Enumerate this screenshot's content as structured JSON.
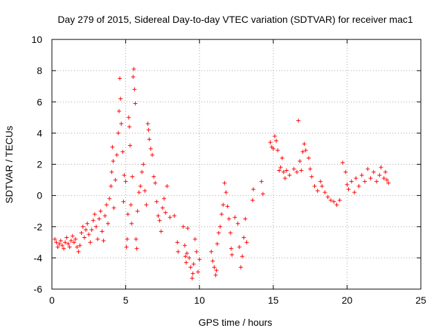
{
  "chart_data": {
    "type": "scatter",
    "title": "Day 279 of 2015, Sidereal Day-to-day VTEC variation (SDTVAR) for receiver mac1",
    "xlabel": "GPS time / hours",
    "ylabel": "SDTVAR / TECUs",
    "xlim": [
      0,
      25
    ],
    "ylim": [
      -6,
      10
    ],
    "xticks": [
      0,
      5,
      10,
      15,
      20,
      25
    ],
    "yticks": [
      -6,
      -4,
      -2,
      0,
      2,
      4,
      6,
      8,
      10
    ],
    "grid": true,
    "marker": "+",
    "color": "#ff0000",
    "series": [
      {
        "name": "SDTVAR",
        "points": [
          [
            0.2,
            -2.8
          ],
          [
            0.3,
            -3.0
          ],
          [
            0.4,
            -3.3
          ],
          [
            0.5,
            -3.1
          ],
          [
            0.6,
            -2.9
          ],
          [
            0.7,
            -3.2
          ],
          [
            0.8,
            -3.4
          ],
          [
            0.9,
            -3.0
          ],
          [
            1.0,
            -2.7
          ],
          [
            1.1,
            -3.1
          ],
          [
            1.2,
            -3.3
          ],
          [
            1.3,
            -2.9
          ],
          [
            1.4,
            -2.6
          ],
          [
            1.5,
            -3.0
          ],
          [
            1.6,
            -2.8
          ],
          [
            1.7,
            -3.3
          ],
          [
            1.8,
            -3.6
          ],
          [
            1.9,
            -3.2
          ],
          [
            2.0,
            -2.4
          ],
          [
            2.1,
            -2.0
          ],
          [
            2.2,
            -2.7
          ],
          [
            2.3,
            -2.2
          ],
          [
            2.4,
            -1.8
          ],
          [
            2.5,
            -2.5
          ],
          [
            2.6,
            -3.0
          ],
          [
            2.7,
            -2.2
          ],
          [
            2.8,
            -1.6
          ],
          [
            2.9,
            -1.2
          ],
          [
            3.0,
            -2.0
          ],
          [
            3.1,
            -2.8
          ],
          [
            3.2,
            -1.5
          ],
          [
            3.3,
            -1.0
          ],
          [
            3.4,
            -2.3
          ],
          [
            3.5,
            -2.9
          ],
          [
            3.6,
            -1.3
          ],
          [
            3.7,
            -0.6
          ],
          [
            3.8,
            -1.8
          ],
          [
            3.9,
            -0.2
          ],
          [
            4.0,
            0.6
          ],
          [
            4.05,
            1.5
          ],
          [
            4.1,
            3.1
          ],
          [
            4.15,
            2.2
          ],
          [
            4.2,
            -0.8
          ],
          [
            4.3,
            1.0
          ],
          [
            4.4,
            2.6
          ],
          [
            4.5,
            4.0
          ],
          [
            4.55,
            5.4
          ],
          [
            4.6,
            7.5
          ],
          [
            4.65,
            6.2
          ],
          [
            4.7,
            4.6
          ],
          [
            4.8,
            2.8
          ],
          [
            4.85,
            -0.4
          ],
          [
            4.9,
            1.3
          ],
          [
            5.0,
            0.9
          ],
          [
            5.05,
            -3.3
          ],
          [
            5.1,
            -2.8
          ],
          [
            5.15,
            -1.2
          ],
          [
            5.2,
            5.0
          ],
          [
            5.25,
            4.4
          ],
          [
            5.3,
            3.2
          ],
          [
            5.35,
            -0.6
          ],
          [
            5.4,
            -1.8
          ],
          [
            5.45,
            1.2
          ],
          [
            5.5,
            7.6
          ],
          [
            5.55,
            8.1
          ],
          [
            5.6,
            6.8
          ],
          [
            5.65,
            5.9
          ],
          [
            5.7,
            -2.8
          ],
          [
            5.75,
            -3.4
          ],
          [
            5.8,
            -1.0
          ],
          [
            5.9,
            0.2
          ],
          [
            6.0,
            0.6
          ],
          [
            6.1,
            1.5
          ],
          [
            6.2,
            2.0
          ],
          [
            6.3,
            0.3
          ],
          [
            6.4,
            -0.6
          ],
          [
            6.5,
            4.6
          ],
          [
            6.55,
            4.2
          ],
          [
            6.6,
            3.6
          ],
          [
            6.7,
            3.0
          ],
          [
            6.8,
            2.6
          ],
          [
            6.9,
            1.2
          ],
          [
            7.0,
            0.8
          ],
          [
            7.1,
            -0.4
          ],
          [
            7.2,
            -1.3
          ],
          [
            7.3,
            -1.6
          ],
          [
            7.4,
            -2.3
          ],
          [
            7.5,
            -0.8
          ],
          [
            7.6,
            -0.2
          ],
          [
            7.7,
            -1.1
          ],
          [
            7.8,
            0.6
          ],
          [
            8.0,
            -1.4
          ],
          [
            8.3,
            -1.3
          ],
          [
            8.5,
            -3.0
          ],
          [
            8.55,
            -3.6
          ],
          [
            8.9,
            -2.0
          ],
          [
            9.0,
            -3.2
          ],
          [
            9.05,
            -3.9
          ],
          [
            9.1,
            -4.3
          ],
          [
            9.15,
            -3.7
          ],
          [
            9.2,
            -2.1
          ],
          [
            9.3,
            -4.0
          ],
          [
            9.4,
            -4.6
          ],
          [
            9.5,
            -5.3
          ],
          [
            9.55,
            -5.0
          ],
          [
            9.6,
            -4.4
          ],
          [
            9.7,
            -2.8
          ],
          [
            9.8,
            -3.6
          ],
          [
            9.9,
            -4.9
          ],
          [
            10.0,
            -4.1
          ],
          [
            10.8,
            -3.6
          ],
          [
            10.9,
            -4.2
          ],
          [
            11.0,
            -4.6
          ],
          [
            11.1,
            -5.1
          ],
          [
            11.15,
            -4.8
          ],
          [
            11.2,
            -3.1
          ],
          [
            11.3,
            -2.4
          ],
          [
            11.4,
            -2.0
          ],
          [
            11.5,
            -1.2
          ],
          [
            11.6,
            -0.6
          ],
          [
            11.7,
            0.8
          ],
          [
            11.8,
            0.2
          ],
          [
            11.9,
            -0.7
          ],
          [
            12.0,
            -1.5
          ],
          [
            12.1,
            -2.4
          ],
          [
            12.15,
            -3.4
          ],
          [
            12.2,
            -3.8
          ],
          [
            12.4,
            -1.4
          ],
          [
            12.6,
            -1.8
          ],
          [
            12.7,
            -3.3
          ],
          [
            12.8,
            -4.6
          ],
          [
            12.9,
            -3.9
          ],
          [
            13.0,
            -2.7
          ],
          [
            13.1,
            -1.5
          ],
          [
            13.2,
            -3.0
          ],
          [
            13.6,
            -0.3
          ],
          [
            13.65,
            0.4
          ],
          [
            14.2,
            0.9
          ],
          [
            14.3,
            0.1
          ],
          [
            14.8,
            3.4
          ],
          [
            14.9,
            3.1
          ],
          [
            15.0,
            3.0
          ],
          [
            15.1,
            3.8
          ],
          [
            15.2,
            3.5
          ],
          [
            15.3,
            2.9
          ],
          [
            15.4,
            1.6
          ],
          [
            15.5,
            1.8
          ],
          [
            15.6,
            2.4
          ],
          [
            15.7,
            1.5
          ],
          [
            15.8,
            1.1
          ],
          [
            15.9,
            1.6
          ],
          [
            16.1,
            1.3
          ],
          [
            16.4,
            1.7
          ],
          [
            16.6,
            1.5
          ],
          [
            16.7,
            4.8
          ],
          [
            16.8,
            2.2
          ],
          [
            16.9,
            1.6
          ],
          [
            17.0,
            2.8
          ],
          [
            17.1,
            3.3
          ],
          [
            17.2,
            2.9
          ],
          [
            17.4,
            2.4
          ],
          [
            17.5,
            1.7
          ],
          [
            17.6,
            1.2
          ],
          [
            17.8,
            0.6
          ],
          [
            18.0,
            0.3
          ],
          [
            18.2,
            0.9
          ],
          [
            18.3,
            0.6
          ],
          [
            18.5,
            0.2
          ],
          [
            18.7,
            -0.1
          ],
          [
            18.9,
            -0.3
          ],
          [
            19.1,
            -0.4
          ],
          [
            19.3,
            -0.6
          ],
          [
            19.5,
            -0.3
          ],
          [
            19.7,
            2.1
          ],
          [
            19.9,
            1.5
          ],
          [
            20.0,
            0.7
          ],
          [
            20.1,
            0.4
          ],
          [
            20.3,
            0.9
          ],
          [
            20.5,
            0.2
          ],
          [
            20.6,
            1.1
          ],
          [
            20.8,
            0.6
          ],
          [
            21.0,
            1.3
          ],
          [
            21.2,
            0.9
          ],
          [
            21.4,
            1.7
          ],
          [
            21.6,
            1.1
          ],
          [
            21.8,
            1.5
          ],
          [
            22.0,
            0.9
          ],
          [
            22.2,
            1.3
          ],
          [
            22.3,
            1.8
          ],
          [
            22.5,
            1.1
          ],
          [
            22.6,
            1.5
          ],
          [
            22.7,
            1.0
          ],
          [
            22.8,
            0.8
          ]
        ]
      }
    ]
  }
}
